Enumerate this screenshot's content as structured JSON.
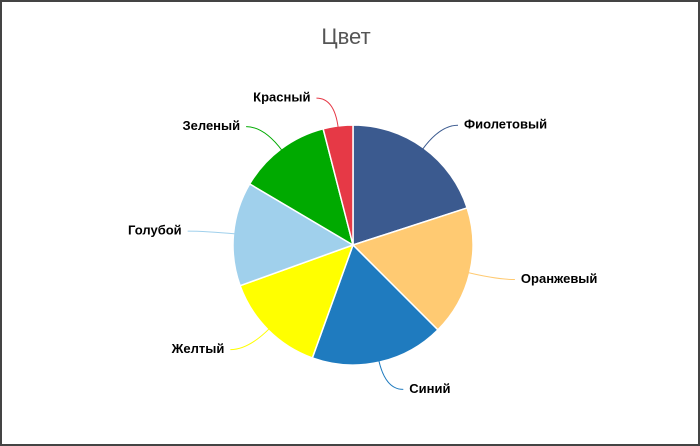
{
  "chart_data": {
    "type": "pie",
    "title": "Цвет",
    "categories": [
      "Фиолетовый",
      "Оранжевый",
      "Синий",
      "Желтый",
      "Голубой",
      "Зеленый",
      "Красный"
    ],
    "values": [
      20,
      17.5,
      18,
      14,
      14,
      12.5,
      4
    ],
    "colors": [
      "#3b5a8f",
      "#ffca72",
      "#1f7bbf",
      "#ffff00",
      "#a0d0ec",
      "#00aa00",
      "#e63946"
    ]
  }
}
